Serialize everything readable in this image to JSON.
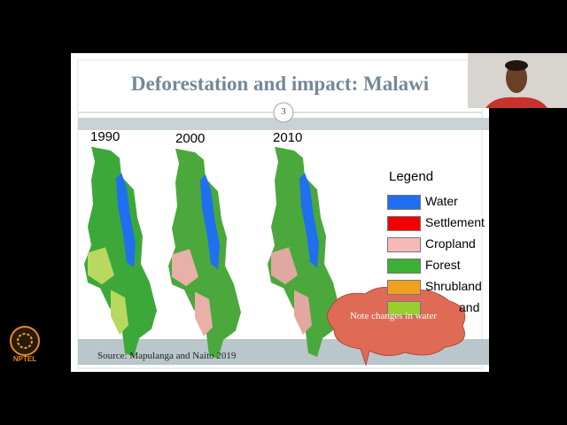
{
  "slide": {
    "title": "Deforestation and impact: Malawi",
    "page_number": "3",
    "maps": [
      "1990",
      "2000",
      "2010"
    ],
    "legend": {
      "title": "Legend",
      "items": [
        "Water",
        "Settlement",
        "Cropland",
        "Forest",
        "Shrubland",
        "and"
      ]
    },
    "callout": "Note changes in water",
    "source": "Source: Mapulanga and Naito 2019"
  },
  "logo": {
    "text": "NPTEL"
  }
}
